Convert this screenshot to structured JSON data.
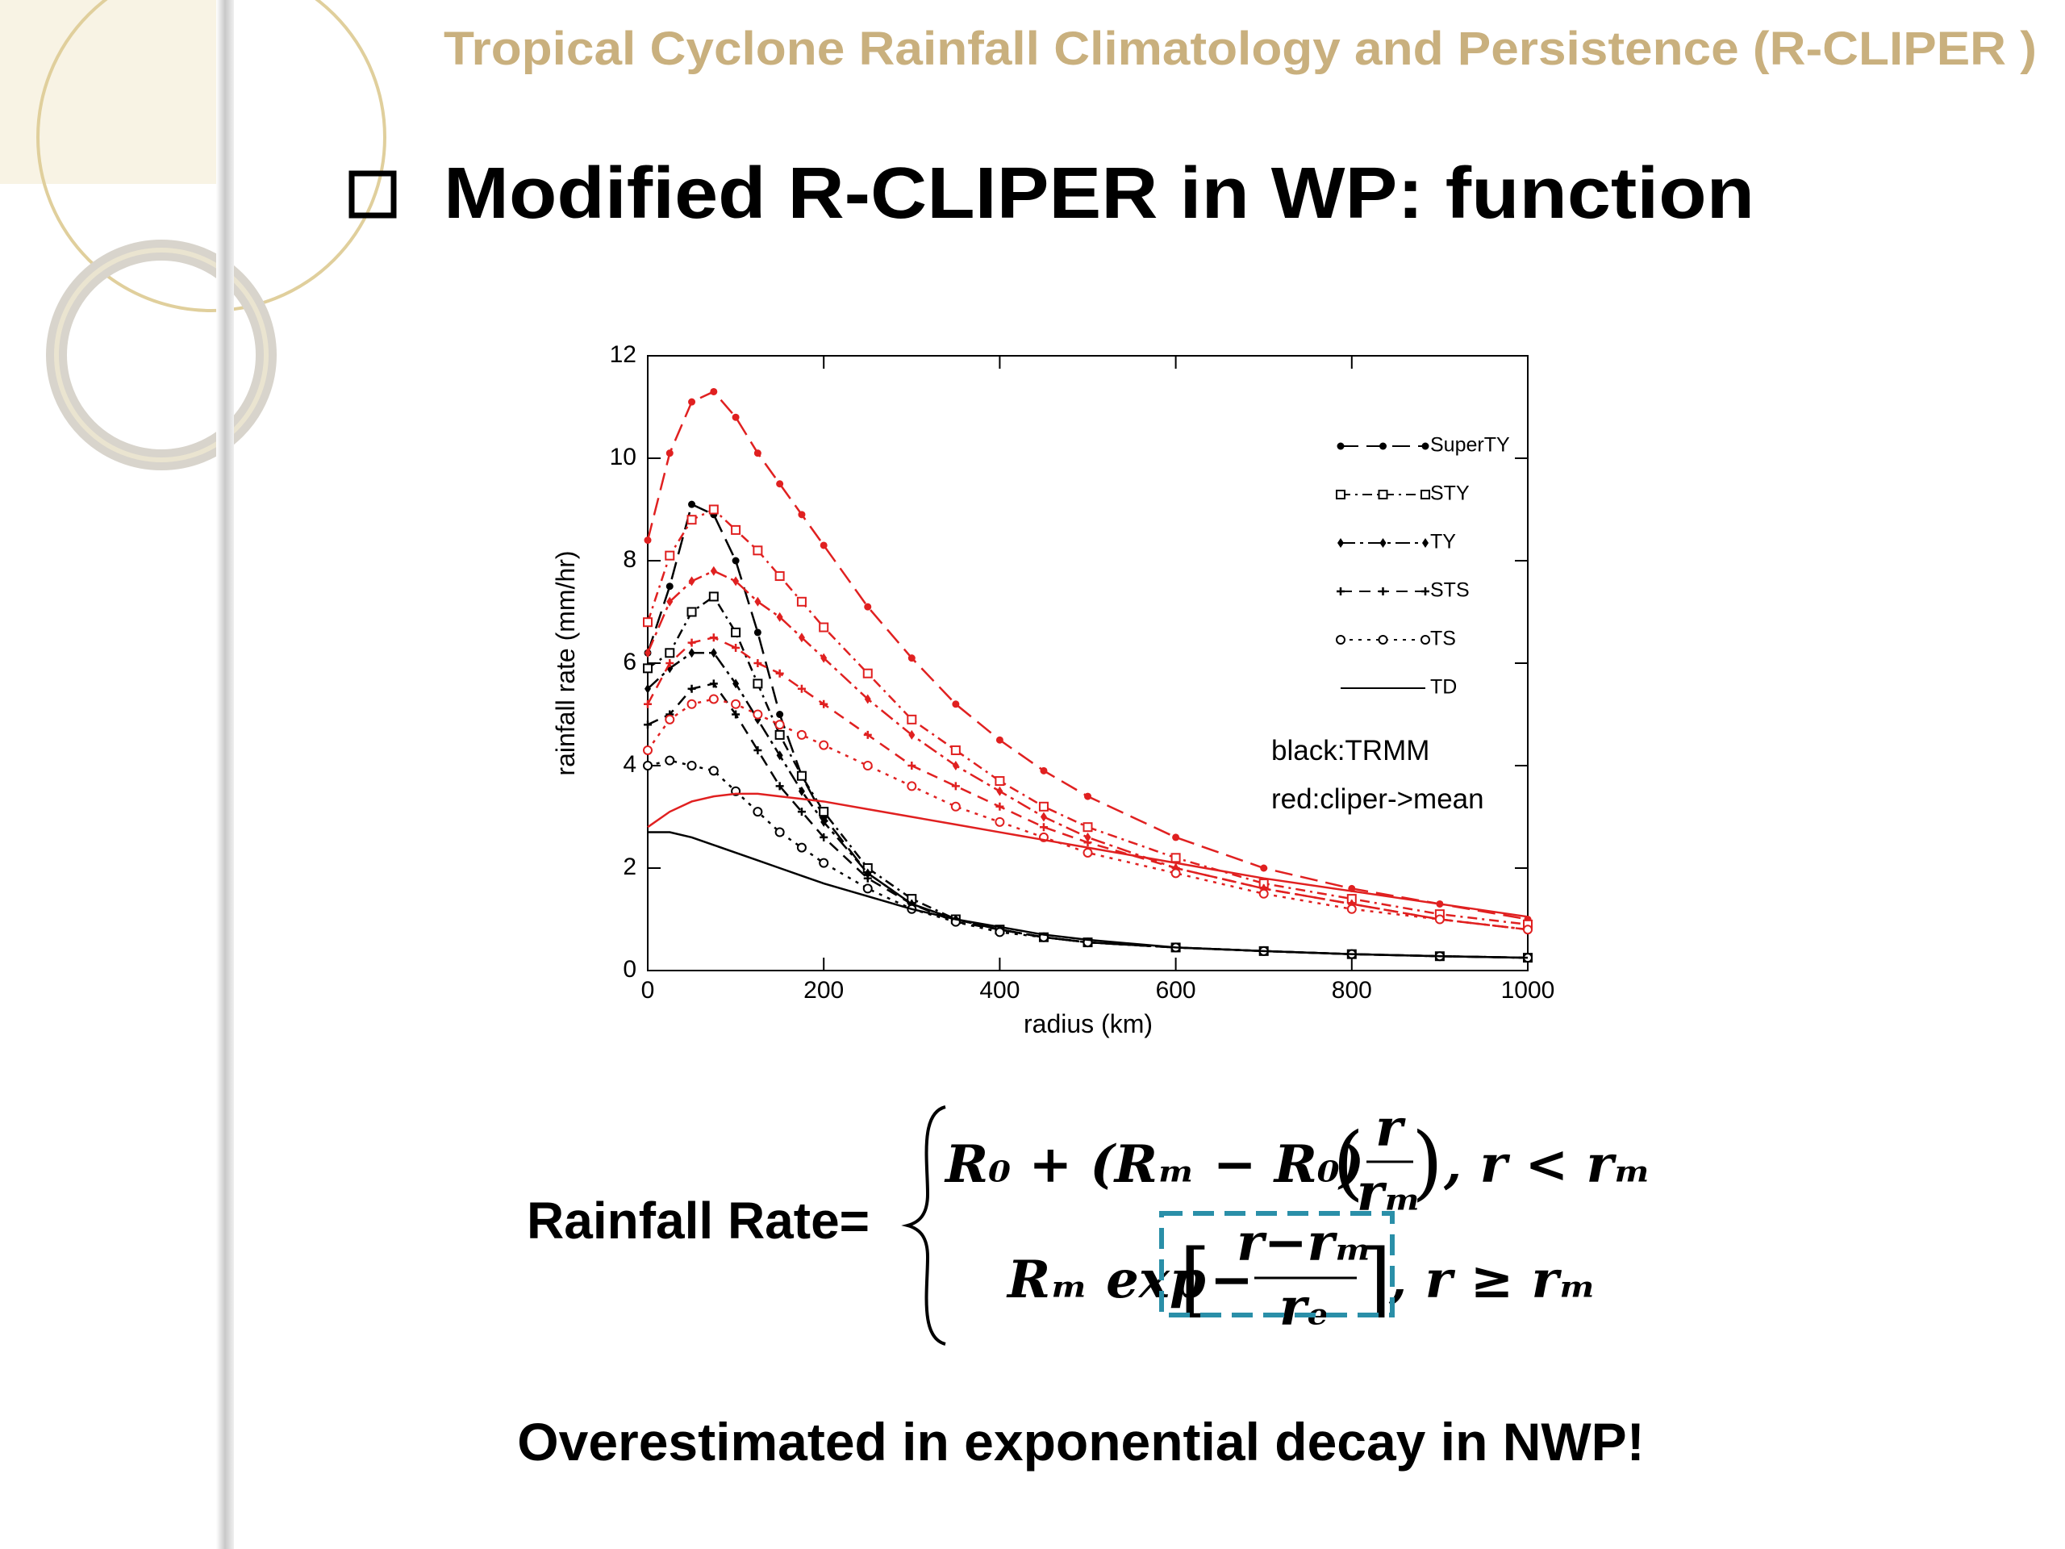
{
  "header": {
    "title": "Tropical Cyclone Rainfall Climatology and Persistence (R-CLIPER )"
  },
  "heading": "Modified R-CLIPER in WP: function",
  "chart_data": {
    "type": "line",
    "x_label": "radius (km)",
    "y_label": "rainfall rate (mm/hr)",
    "xlim": [
      0,
      1000
    ],
    "xticks": [
      0,
      200,
      400,
      600,
      800,
      1000
    ],
    "ylim": [
      0,
      12
    ],
    "yticks": [
      0,
      2,
      4,
      6,
      8,
      10,
      12
    ],
    "legend": "upper right",
    "annotations": [
      "black:TRMM",
      "red:cliper->mean"
    ],
    "x": [
      0,
      25,
      50,
      75,
      100,
      125,
      150,
      175,
      200,
      250,
      300,
      350,
      400,
      450,
      500,
      600,
      700,
      800,
      900,
      1000
    ],
    "series": [
      {
        "name": "SuperTY",
        "color": "#000000",
        "marker": "filled-circle",
        "dash": "22 10",
        "values": [
          6.2,
          7.5,
          9.1,
          8.9,
          8.0,
          6.6,
          5.0,
          3.8,
          3.0,
          1.9,
          1.3,
          1.0,
          0.8,
          0.65,
          0.55,
          0.45,
          0.38,
          0.32,
          0.28,
          0.25
        ]
      },
      {
        "name": "STY",
        "color": "#000000",
        "marker": "square",
        "dash": "12 6 3 6",
        "values": [
          5.9,
          6.2,
          7.0,
          7.3,
          6.6,
          5.6,
          4.6,
          3.8,
          3.1,
          2.0,
          1.4,
          1.0,
          0.8,
          0.65,
          0.55,
          0.45,
          0.38,
          0.32,
          0.28,
          0.25
        ]
      },
      {
        "name": "TY",
        "color": "#000000",
        "marker": "diamond",
        "dash": "18 6 4 6",
        "values": [
          5.5,
          5.9,
          6.2,
          6.2,
          5.6,
          4.9,
          4.2,
          3.5,
          2.9,
          1.9,
          1.3,
          1.0,
          0.8,
          0.65,
          0.55,
          0.45,
          0.38,
          0.32,
          0.28,
          0.25
        ]
      },
      {
        "name": "STS",
        "color": "#000000",
        "marker": "plus",
        "dash": "14 9",
        "values": [
          4.8,
          5.0,
          5.5,
          5.6,
          5.0,
          4.3,
          3.6,
          3.1,
          2.6,
          1.8,
          1.3,
          0.95,
          0.8,
          0.65,
          0.55,
          0.45,
          0.38,
          0.32,
          0.28,
          0.25
        ]
      },
      {
        "name": "TS",
        "color": "#000000",
        "marker": "open-circle",
        "dash": "4 7",
        "values": [
          4.0,
          4.1,
          4.0,
          3.9,
          3.5,
          3.1,
          2.7,
          2.4,
          2.1,
          1.6,
          1.2,
          0.95,
          0.75,
          0.65,
          0.55,
          0.45,
          0.38,
          0.32,
          0.28,
          0.25
        ]
      },
      {
        "name": "TD",
        "color": "#000000",
        "marker": "none",
        "dash": "none",
        "values": [
          2.7,
          2.7,
          2.6,
          2.45,
          2.3,
          2.15,
          2.0,
          1.85,
          1.7,
          1.45,
          1.2,
          1.0,
          0.85,
          0.7,
          0.6,
          0.45,
          0.38,
          0.32,
          0.28,
          0.25
        ]
      },
      {
        "name": "SuperTY",
        "color": "#e02020",
        "marker": "filled-circle",
        "dash": "22 10",
        "values": [
          8.4,
          10.1,
          11.1,
          11.3,
          10.8,
          10.1,
          9.5,
          8.9,
          8.3,
          7.1,
          6.1,
          5.2,
          4.5,
          3.9,
          3.4,
          2.6,
          2.0,
          1.6,
          1.3,
          1.0
        ]
      },
      {
        "name": "STY",
        "color": "#e02020",
        "marker": "square",
        "dash": "12 6 3 6",
        "values": [
          6.8,
          8.1,
          8.8,
          9.0,
          8.6,
          8.2,
          7.7,
          7.2,
          6.7,
          5.8,
          4.9,
          4.3,
          3.7,
          3.2,
          2.8,
          2.2,
          1.7,
          1.4,
          1.1,
          0.9
        ]
      },
      {
        "name": "TY",
        "color": "#e02020",
        "marker": "diamond",
        "dash": "18 6 4 6",
        "values": [
          6.2,
          7.2,
          7.6,
          7.8,
          7.6,
          7.2,
          6.9,
          6.5,
          6.1,
          5.3,
          4.6,
          4.0,
          3.5,
          3.0,
          2.6,
          2.0,
          1.6,
          1.3,
          1.0,
          0.8
        ]
      },
      {
        "name": "STS",
        "color": "#e02020",
        "marker": "plus",
        "dash": "14 9",
        "values": [
          5.2,
          6.0,
          6.4,
          6.5,
          6.3,
          6.0,
          5.8,
          5.5,
          5.2,
          4.6,
          4.0,
          3.6,
          3.2,
          2.8,
          2.5,
          2.0,
          1.6,
          1.3,
          1.0,
          0.8
        ]
      },
      {
        "name": "TS",
        "color": "#e02020",
        "marker": "open-circle",
        "dash": "4 7",
        "values": [
          4.3,
          4.9,
          5.2,
          5.3,
          5.2,
          5.0,
          4.8,
          4.6,
          4.4,
          4.0,
          3.6,
          3.2,
          2.9,
          2.6,
          2.3,
          1.9,
          1.5,
          1.2,
          1.0,
          0.8
        ]
      },
      {
        "name": "TD",
        "color": "#e02020",
        "marker": "none",
        "dash": "none",
        "values": [
          2.8,
          3.1,
          3.3,
          3.4,
          3.45,
          3.45,
          3.4,
          3.35,
          3.3,
          3.15,
          3.0,
          2.85,
          2.7,
          2.55,
          2.4,
          2.1,
          1.8,
          1.55,
          1.3,
          1.05
        ]
      }
    ]
  },
  "formula": {
    "label": "Rainfall Rate=",
    "cases": [
      {
        "lead": "R₀ + (Rₘ − R₀)",
        "numerator": "r",
        "denominator": "rₘ",
        "condition": ", r < rₘ"
      },
      {
        "lead": "Rₘ exp",
        "sign": "−",
        "numerator": "r−rₘ",
        "denominator": "rₑ",
        "condition": ", r ≥ rₘ"
      }
    ]
  },
  "conclusion": "Overestimated in exponential decay in NWP!"
}
